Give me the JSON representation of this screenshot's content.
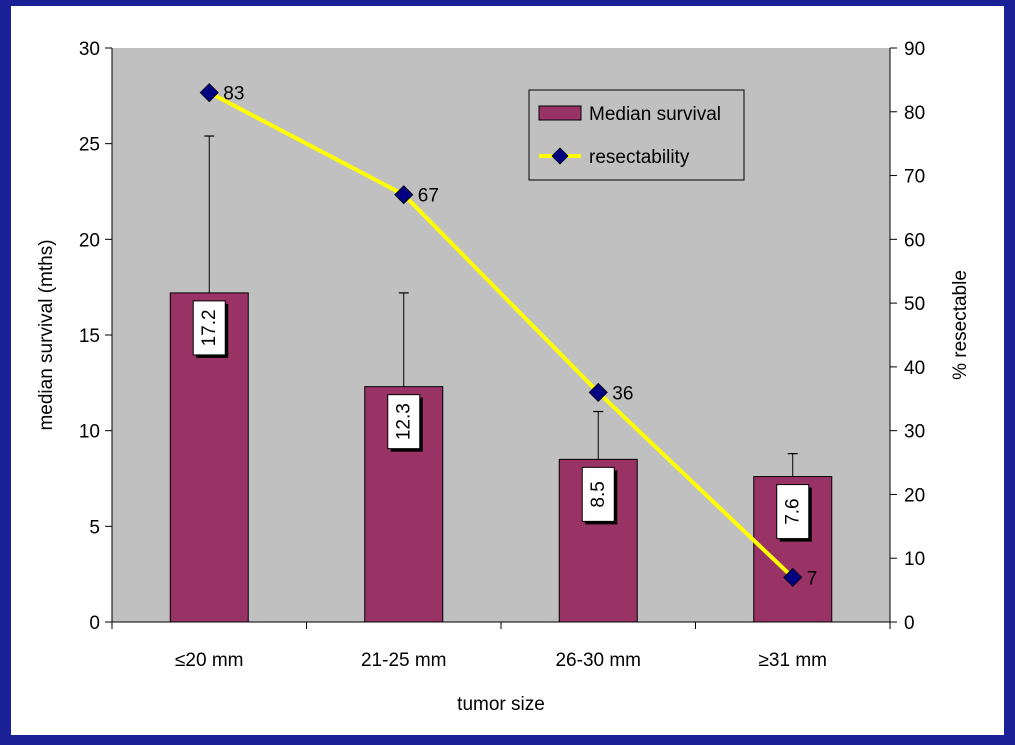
{
  "chart_data": {
    "type": "bar",
    "xlabel": "tumor size",
    "ylabel_left": "median survival (mths)",
    "ylabel_right": "% resectable",
    "categories": [
      "≤20 mm",
      "21-25 mm",
      "26-30 mm",
      "≥31 mm"
    ],
    "ylim_left": [
      0,
      30
    ],
    "yticks_left": [
      0,
      5,
      10,
      15,
      20,
      25,
      30
    ],
    "ylim_right": [
      0,
      90
    ],
    "yticks_right": [
      0,
      10,
      20,
      30,
      40,
      50,
      60,
      70,
      80,
      90
    ],
    "grid": false,
    "legend_position": "top-right",
    "series": [
      {
        "name": "Median survival",
        "type": "bar",
        "axis": "left",
        "values": [
          17.2,
          12.3,
          8.5,
          7.6
        ],
        "labels": [
          "17.2",
          "12.3",
          "8.5",
          "7.6"
        ],
        "error_upper": [
          25.4,
          17.2,
          11.0,
          8.8
        ],
        "color": "#993366"
      },
      {
        "name": "resectability",
        "type": "line",
        "axis": "right",
        "values": [
          83,
          67,
          36,
          7
        ],
        "labels": [
          "83",
          "67",
          "36",
          "7"
        ],
        "line_color": "#ffff00",
        "marker_color": "#000080"
      }
    ],
    "plot_background": "#c0c0c0",
    "frame_color": "#1a2196"
  }
}
